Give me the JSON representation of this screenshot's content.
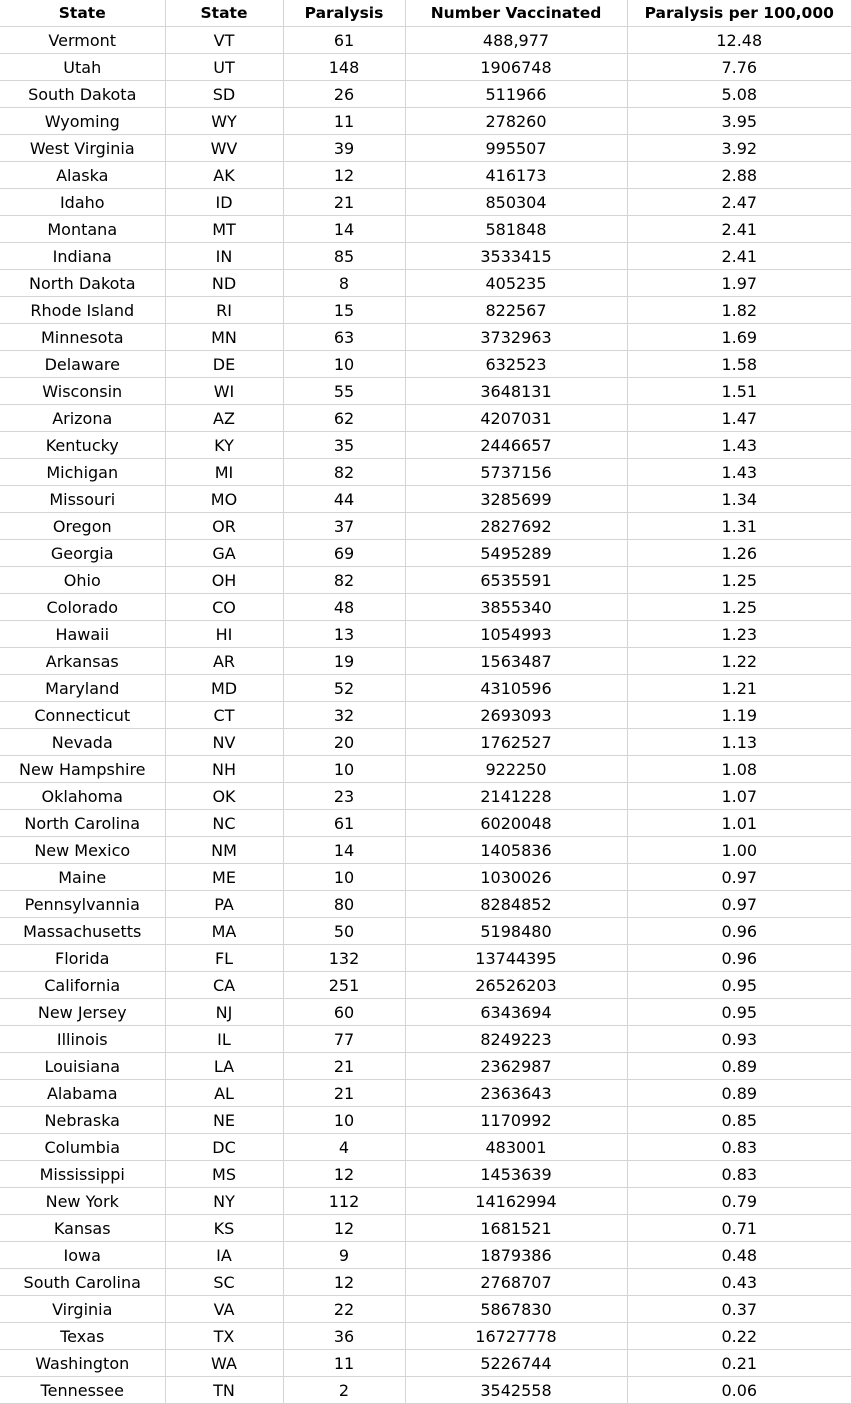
{
  "headers": [
    "State",
    "State",
    "Paralysis",
    "Number Vaccinated",
    "Paralysis per 100,000"
  ],
  "rows": [
    [
      "Vermont",
      "VT",
      "61",
      "488,977",
      "12.48"
    ],
    [
      "Utah",
      "UT",
      "148",
      "1906748",
      "7.76"
    ],
    [
      "South Dakota",
      "SD",
      "26",
      "511966",
      "5.08"
    ],
    [
      "Wyoming",
      "WY",
      "11",
      "278260",
      "3.95"
    ],
    [
      "West Virginia",
      "WV",
      "39",
      "995507",
      "3.92"
    ],
    [
      "Alaska",
      "AK",
      "12",
      "416173",
      "2.88"
    ],
    [
      "Idaho",
      "ID",
      "21",
      "850304",
      "2.47"
    ],
    [
      "Montana",
      "MT",
      "14",
      "581848",
      "2.41"
    ],
    [
      "Indiana",
      "IN",
      "85",
      "3533415",
      "2.41"
    ],
    [
      "North Dakota",
      "ND",
      "8",
      "405235",
      "1.97"
    ],
    [
      "Rhode Island",
      "RI",
      "15",
      "822567",
      "1.82"
    ],
    [
      "Minnesota",
      "MN",
      "63",
      "3732963",
      "1.69"
    ],
    [
      "Delaware",
      "DE",
      "10",
      "632523",
      "1.58"
    ],
    [
      "Wisconsin",
      "WI",
      "55",
      "3648131",
      "1.51"
    ],
    [
      "Arizona",
      "AZ",
      "62",
      "4207031",
      "1.47"
    ],
    [
      "Kentucky",
      "KY",
      "35",
      "2446657",
      "1.43"
    ],
    [
      "Michigan",
      "MI",
      "82",
      "5737156",
      "1.43"
    ],
    [
      "Missouri",
      "MO",
      "44",
      "3285699",
      "1.34"
    ],
    [
      "Oregon",
      "OR",
      "37",
      "2827692",
      "1.31"
    ],
    [
      "Georgia",
      "GA",
      "69",
      "5495289",
      "1.26"
    ],
    [
      "Ohio",
      "OH",
      "82",
      "6535591",
      "1.25"
    ],
    [
      "Colorado",
      "CO",
      "48",
      "3855340",
      "1.25"
    ],
    [
      "Hawaii",
      "HI",
      "13",
      "1054993",
      "1.23"
    ],
    [
      "Arkansas",
      "AR",
      "19",
      "1563487",
      "1.22"
    ],
    [
      "Maryland",
      "MD",
      "52",
      "4310596",
      "1.21"
    ],
    [
      "Connecticut",
      "CT",
      "32",
      "2693093",
      "1.19"
    ],
    [
      "Nevada",
      "NV",
      "20",
      "1762527",
      "1.13"
    ],
    [
      "New Hampshire",
      "NH",
      "10",
      "922250",
      "1.08"
    ],
    [
      "Oklahoma",
      "OK",
      "23",
      "2141228",
      "1.07"
    ],
    [
      "North Carolina",
      "NC",
      "61",
      "6020048",
      "1.01"
    ],
    [
      "New Mexico",
      "NM",
      "14",
      "1405836",
      "1.00"
    ],
    [
      "Maine",
      "ME",
      "10",
      "1030026",
      "0.97"
    ],
    [
      "Pennsylvannia",
      "PA",
      "80",
      "8284852",
      "0.97"
    ],
    [
      "Massachusetts",
      "MA",
      "50",
      "5198480",
      "0.96"
    ],
    [
      "Florida",
      "FL",
      "132",
      "13744395",
      "0.96"
    ],
    [
      "California",
      "CA",
      "251",
      "26526203",
      "0.95"
    ],
    [
      "New Jersey",
      "NJ",
      "60",
      "6343694",
      "0.95"
    ],
    [
      "Illinois",
      "IL",
      "77",
      "8249223",
      "0.93"
    ],
    [
      "Louisiana",
      "LA",
      "21",
      "2362987",
      "0.89"
    ],
    [
      "Alabama",
      "AL",
      "21",
      "2363643",
      "0.89"
    ],
    [
      "Nebraska",
      "NE",
      "10",
      "1170992",
      "0.85"
    ],
    [
      "Columbia",
      "DC",
      "4",
      "483001",
      "0.83"
    ],
    [
      "Mississippi",
      "MS",
      "12",
      "1453639",
      "0.83"
    ],
    [
      "New York",
      "NY",
      "112",
      "14162994",
      "0.79"
    ],
    [
      "Kansas",
      "KS",
      "12",
      "1681521",
      "0.71"
    ],
    [
      "Iowa",
      "IA",
      "9",
      "1879386",
      "0.48"
    ],
    [
      "South Carolina",
      "SC",
      "12",
      "2768707",
      "0.43"
    ],
    [
      "Virginia",
      "VA",
      "22",
      "5867830",
      "0.37"
    ],
    [
      "Texas",
      "TX",
      "36",
      "16727778",
      "0.22"
    ],
    [
      "Washington",
      "WA",
      "11",
      "5226744",
      "0.21"
    ],
    [
      "Tennessee",
      "TN",
      "2",
      "3542558",
      "0.06"
    ]
  ]
}
